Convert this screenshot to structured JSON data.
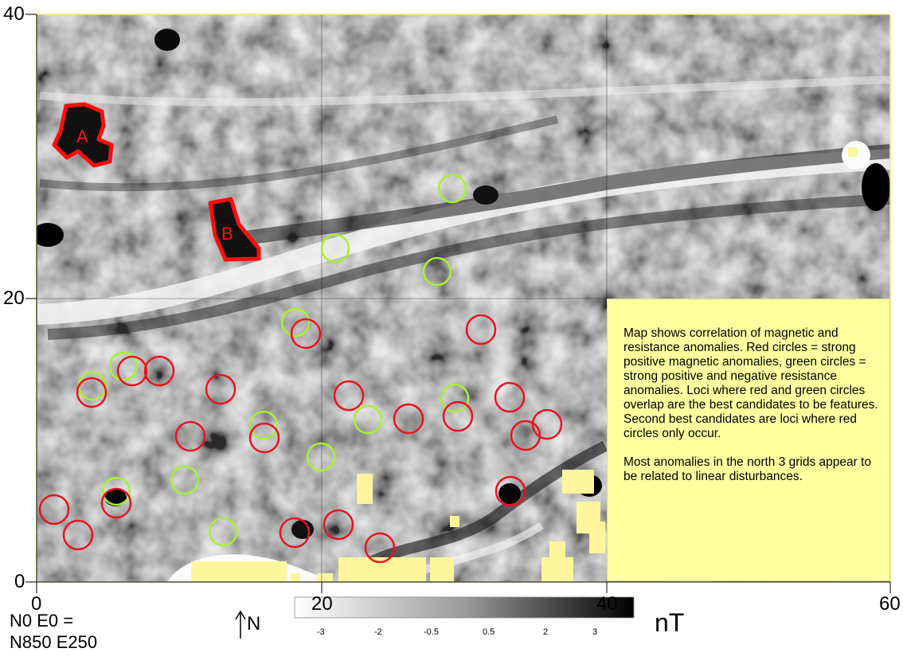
{
  "map": {
    "x_axis_labels": [
      "0",
      "20",
      "40",
      "60"
    ],
    "y_axis_labels": [
      "0",
      "20",
      "40"
    ],
    "feature_labels": [
      "A",
      "B"
    ],
    "colors": {
      "red_circle": "#e8141e",
      "green_circle": "#a8f032",
      "sand": "#fff59a",
      "polygon": "#ff0d0d"
    }
  },
  "legend": {
    "paragraph1": "Map shows correlation of magnetic and resistance anomalies. Red circles =  strong positive magnetic anomalies, green circles = strong positive and negative resistance anomalies. Loci where red and green circles overlap are the best candidates to be features. Second best candidates are loci where red circles only occur.",
    "paragraph2": "Most anomalies in the north 3 grids appear to be related to linear disturbances."
  },
  "footer": {
    "datum_line1": "N0 E0 =",
    "datum_line2": "N850 E250",
    "north_label": "N",
    "unit": "nT",
    "scale_ticks": [
      "-3",
      "-2",
      "-0.5",
      "0.5",
      "2",
      "3"
    ]
  }
}
